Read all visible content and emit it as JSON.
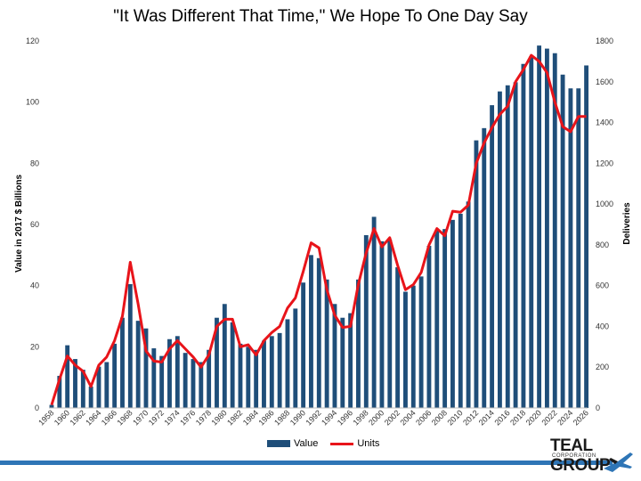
{
  "chart_data": {
    "type": "bar+line",
    "title": "\"It Was Different That Time,\" We Hope To One Day Say",
    "ylabel_left": "Value in 2017 $ Billions",
    "ylabel_right": "Deliveries",
    "ylim_left": [
      0,
      120
    ],
    "ylim_right": [
      0,
      1800
    ],
    "left_ticks": [
      0,
      20,
      40,
      60,
      80,
      100,
      120
    ],
    "right_ticks": [
      0,
      200,
      400,
      600,
      800,
      1000,
      1200,
      1400,
      1600,
      1800
    ],
    "x_tick_labels": [
      "1958",
      "1960",
      "1962",
      "1964",
      "1966",
      "1968",
      "1970",
      "1972",
      "1974",
      "1976",
      "1978",
      "1980",
      "1982",
      "1984",
      "1986",
      "1988",
      "1990",
      "1992",
      "1994",
      "1996",
      "1998",
      "2000",
      "2002",
      "2004",
      "2006",
      "2008",
      "2010",
      "2012",
      "2014",
      "2016",
      "2018",
      "2020",
      "2022",
      "2024",
      "2026"
    ],
    "years": [
      1958,
      1959,
      1960,
      1961,
      1962,
      1963,
      1964,
      1965,
      1966,
      1967,
      1968,
      1969,
      1970,
      1971,
      1972,
      1973,
      1974,
      1975,
      1976,
      1977,
      1978,
      1979,
      1980,
      1981,
      1982,
      1983,
      1984,
      1985,
      1986,
      1987,
      1988,
      1989,
      1990,
      1991,
      1992,
      1993,
      1994,
      1995,
      1996,
      1997,
      1998,
      1999,
      2000,
      2001,
      2002,
      2003,
      2004,
      2005,
      2006,
      2007,
      2008,
      2009,
      2010,
      2011,
      2012,
      2013,
      2014,
      2015,
      2016,
      2017,
      2018,
      2019,
      2020,
      2021,
      2022,
      2023,
      2024,
      2025,
      2026
    ],
    "series": [
      {
        "name": "Value",
        "kind": "bar",
        "color": "#1f4e79",
        "values": [
          1,
          10.5,
          20.5,
          16,
          12.5,
          7,
          13.5,
          15,
          21,
          29.5,
          40.5,
          28.5,
          26,
          19.5,
          17,
          22.5,
          23.5,
          18,
          16,
          15,
          19,
          29.5,
          34,
          28,
          21,
          20,
          19,
          22,
          23.5,
          24.5,
          29,
          32.5,
          41,
          50,
          49,
          42,
          34,
          29.5,
          31,
          42,
          56.5,
          62.5,
          54.5,
          55,
          46,
          38,
          40,
          43,
          53,
          58,
          58.5,
          61.5,
          63.5,
          67.5,
          87.5,
          91.5,
          99,
          103.5,
          105.5,
          106.5,
          112.5,
          115,
          118.5,
          117.5,
          116,
          109,
          104.5,
          104.5,
          112
        ]
      },
      {
        "name": "Units",
        "kind": "line",
        "color": "#e8141a",
        "values": [
          15,
          140,
          255,
          210,
          180,
          105,
          210,
          250,
          330,
          450,
          715,
          510,
          280,
          230,
          225,
          290,
          330,
          290,
          250,
          200,
          260,
          400,
          435,
          435,
          300,
          310,
          260,
          330,
          370,
          400,
          490,
          540,
          670,
          810,
          785,
          580,
          455,
          395,
          400,
          605,
          760,
          880,
          790,
          835,
          700,
          580,
          605,
          665,
          800,
          880,
          845,
          965,
          960,
          995,
          1200,
          1300,
          1375,
          1440,
          1480,
          1600,
          1660,
          1730,
          1700,
          1645,
          1500,
          1380,
          1355,
          1430,
          1430
        ]
      }
    ],
    "legend": [
      "Value",
      "Units"
    ],
    "legend_position": "bottom-center",
    "grid": false
  },
  "branding": {
    "logo_name": "TEAL GROUP",
    "logo_sub": "CORPORATION"
  }
}
